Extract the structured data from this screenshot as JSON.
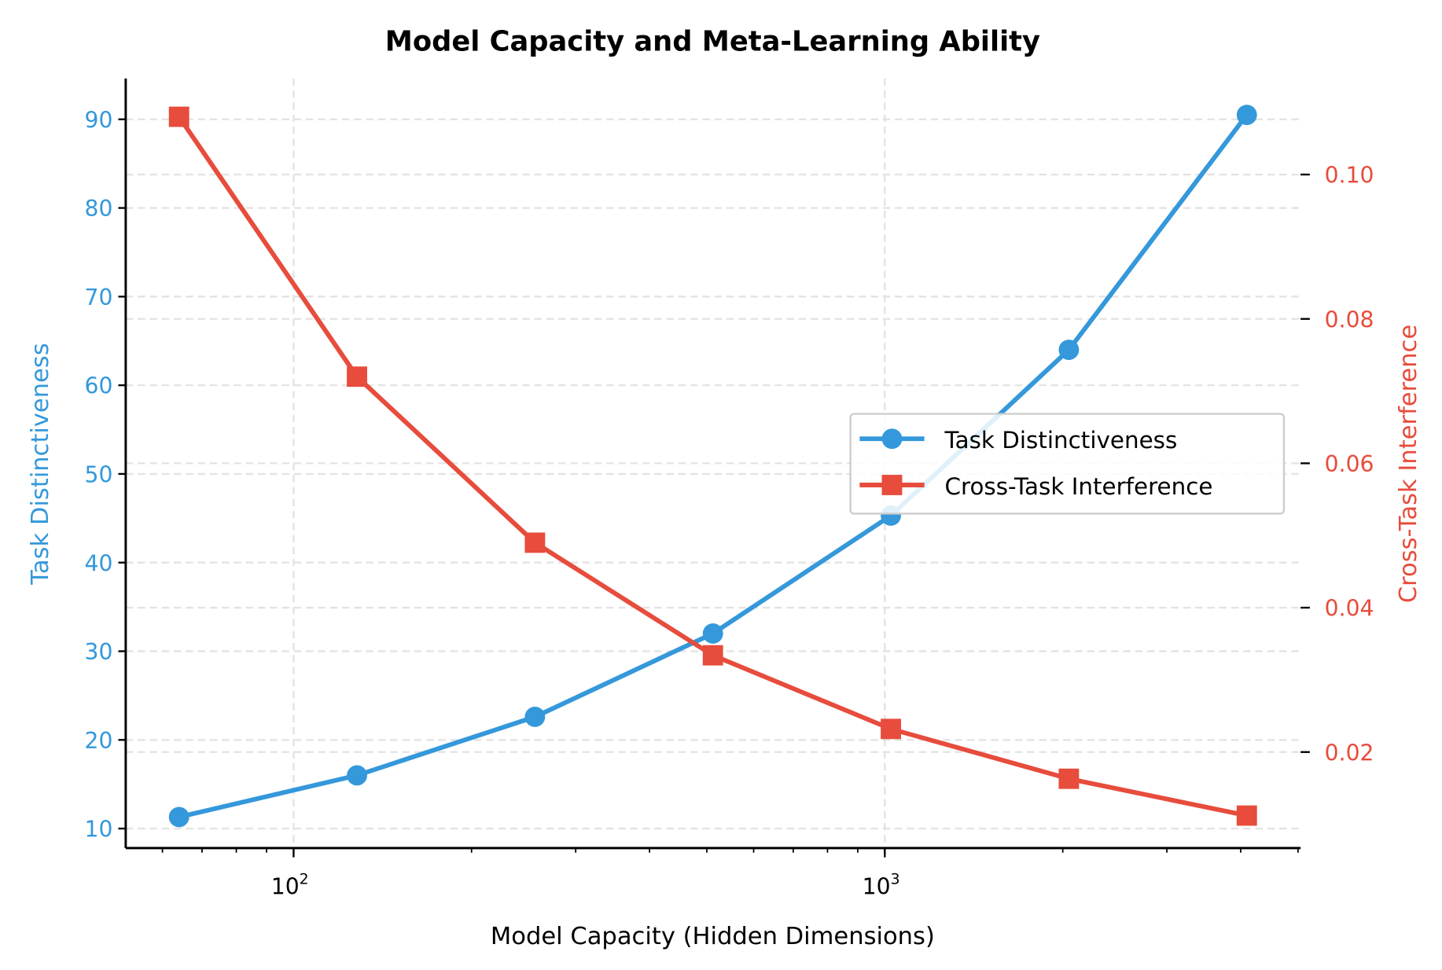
{
  "chart_data": {
    "type": "line",
    "title": "Model Capacity and Meta-Learning Ability",
    "xlabel": "Model Capacity (Hidden Dimensions)",
    "ylabel_left": "Task Distinctiveness",
    "ylabel_right": "Cross-Task Interference",
    "x_scale": "log",
    "x": [
      64,
      128,
      256,
      512,
      1024,
      2048,
      4096
    ],
    "xlim": [
      52,
      5050
    ],
    "ylim_left": [
      7.8,
      94.6
    ],
    "ylim_right": [
      0.0067,
      0.1133
    ],
    "x_tick_labels": [
      {
        "base": "10",
        "exp": "2",
        "value": 100
      },
      {
        "base": "10",
        "exp": "3",
        "value": 1000
      }
    ],
    "y_left_ticks": [
      "10",
      "20",
      "30",
      "40",
      "50",
      "60",
      "70",
      "80",
      "90"
    ],
    "y_right_ticks": [
      "0.02",
      "0.04",
      "0.06",
      "0.08",
      "0.10"
    ],
    "grid": true,
    "legend_placement": "center-right",
    "series": [
      {
        "name": "Task Distinctiveness",
        "axis": "left",
        "marker": "circle",
        "color": "#3498db",
        "values": [
          11.3,
          16.0,
          22.6,
          32.0,
          45.3,
          64.0,
          90.5
        ]
      },
      {
        "name": "Cross-Task Interference",
        "axis": "right",
        "marker": "square",
        "color": "#e74c3c",
        "values": [
          0.108,
          0.072,
          0.049,
          0.0334,
          0.0232,
          0.0163,
          0.0112
        ]
      }
    ]
  }
}
